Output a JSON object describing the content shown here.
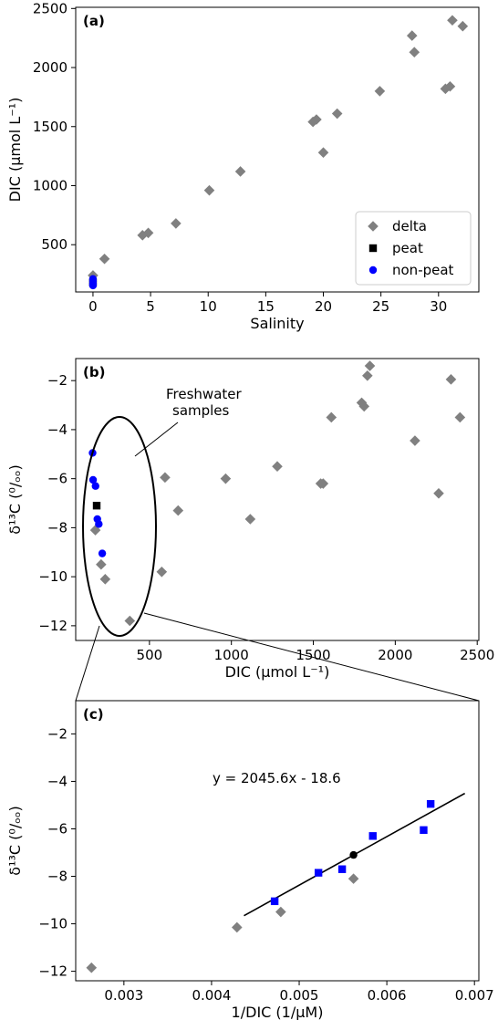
{
  "chart_data": [
    {
      "panel": "(a)",
      "type": "scatter",
      "xlabel": "Salinity",
      "ylabel": "DIC (μmol L⁻¹)",
      "xlim": [
        -1.5,
        33.5
      ],
      "ylim": [
        100,
        2510
      ],
      "xticks": [
        0,
        5,
        10,
        15,
        20,
        25,
        30
      ],
      "yticks": [
        500,
        1000,
        1500,
        2000,
        2500
      ],
      "legend": {
        "position": "bottom-right",
        "entries": [
          "delta",
          "peat",
          "non-peat"
        ]
      },
      "series": [
        {
          "name": "delta",
          "marker": "diamond",
          "color": "#808080",
          "points": [
            [
              0,
              240
            ],
            [
              1,
              380
            ],
            [
              4.3,
              580
            ],
            [
              4.8,
              600
            ],
            [
              7.2,
              680
            ],
            [
              10.1,
              960
            ],
            [
              12.8,
              1120
            ],
            [
              19.1,
              1540
            ],
            [
              19.4,
              1560
            ],
            [
              20,
              1280
            ],
            [
              21.2,
              1610
            ],
            [
              24.9,
              1800
            ],
            [
              27.7,
              2270
            ],
            [
              27.9,
              2130
            ],
            [
              30.6,
              1820
            ],
            [
              31,
              1840
            ],
            [
              31.2,
              2400
            ],
            [
              32.1,
              2350
            ]
          ]
        },
        {
          "name": "peat",
          "marker": "square",
          "color": "#000000",
          "points": [
            [
              0,
              180
            ]
          ]
        },
        {
          "name": "non-peat",
          "marker": "circle",
          "color": "#0000ff",
          "points": [
            [
              0,
              210
            ],
            [
              0,
              200
            ],
            [
              0,
              190
            ],
            [
              0,
              175
            ],
            [
              0,
              165
            ],
            [
              0,
              155
            ]
          ]
        }
      ]
    },
    {
      "panel": "(b)",
      "type": "scatter",
      "xlabel": "DIC (μmol L⁻¹)",
      "ylabel": "δ¹³C (⁰/ₒₒ)",
      "xlim": [
        50,
        2510
      ],
      "ylim": [
        -12.6,
        -1.1
      ],
      "xticks": [
        500,
        1000,
        1500,
        2000,
        2500
      ],
      "yticks": [
        -12,
        -10,
        -8,
        -6,
        -4,
        -2
      ],
      "annotation": "Freshwater\nsamples",
      "series": [
        {
          "name": "delta",
          "marker": "diamond",
          "color": "#808080",
          "points": [
            [
              170,
              -8.1
            ],
            [
              205,
              -9.5
            ],
            [
              230,
              -10.1
            ],
            [
              380,
              -11.8
            ],
            [
              575,
              -9.8
            ],
            [
              595,
              -5.95
            ],
            [
              675,
              -7.3
            ],
            [
              965,
              -6.0
            ],
            [
              1115,
              -7.65
            ],
            [
              1280,
              -5.5
            ],
            [
              1545,
              -6.2
            ],
            [
              1560,
              -6.2
            ],
            [
              1610,
              -3.5
            ],
            [
              1795,
              -2.9
            ],
            [
              1810,
              -3.05
            ],
            [
              1830,
              -1.8
            ],
            [
              1845,
              -1.4
            ],
            [
              2120,
              -4.45
            ],
            [
              2265,
              -6.6
            ],
            [
              2340,
              -1.95
            ],
            [
              2395,
              -3.5
            ]
          ]
        },
        {
          "name": "peat",
          "marker": "square",
          "color": "#000000",
          "points": [
            [
              178,
              -7.1
            ]
          ]
        },
        {
          "name": "non-peat",
          "marker": "circle",
          "color": "#0000ff",
          "points": [
            [
              153,
              -4.95
            ],
            [
              156,
              -6.05
            ],
            [
              171,
              -6.3
            ],
            [
              182,
              -7.65
            ],
            [
              191,
              -7.85
            ],
            [
              212,
              -9.05
            ]
          ]
        }
      ]
    },
    {
      "panel": "(c)",
      "type": "scatter",
      "xlabel": "1/DIC (1/μM)",
      "ylabel": "δ¹³C (⁰/ₒₒ)",
      "xlim": [
        0.00245,
        0.00705
      ],
      "ylim": [
        -12.4,
        -0.6
      ],
      "xticks": [
        0.003,
        0.004,
        0.005,
        0.006,
        0.007
      ],
      "xticklabels": [
        "0.003",
        "0.004",
        "0.005",
        "0.006",
        "0.007"
      ],
      "yticks": [
        -12,
        -10,
        -8,
        -6,
        -4,
        -2
      ],
      "equation": "y = 2045.6x - 18.6",
      "fit": {
        "slope": 2045.6,
        "intercept": -18.6,
        "x_range": [
          0.00437,
          0.00689
        ]
      },
      "series": [
        {
          "name": "delta",
          "marker": "diamond",
          "color": "#808080",
          "points": [
            [
              0.00263,
              -11.85
            ],
            [
              0.00429,
              -10.15
            ],
            [
              0.00479,
              -9.5
            ],
            [
              0.00562,
              -8.1
            ]
          ]
        },
        {
          "name": "peat",
          "marker": "circle",
          "color": "#000000",
          "points": [
            [
              0.00562,
              -7.1
            ]
          ]
        },
        {
          "name": "non-peat",
          "marker": "square",
          "color": "#0000ff",
          "points": [
            [
              0.00472,
              -9.05
            ],
            [
              0.00522,
              -7.85
            ],
            [
              0.00549,
              -7.7
            ],
            [
              0.00584,
              -6.3
            ],
            [
              0.00642,
              -6.05
            ],
            [
              0.0065,
              -4.95
            ]
          ]
        }
      ]
    }
  ]
}
